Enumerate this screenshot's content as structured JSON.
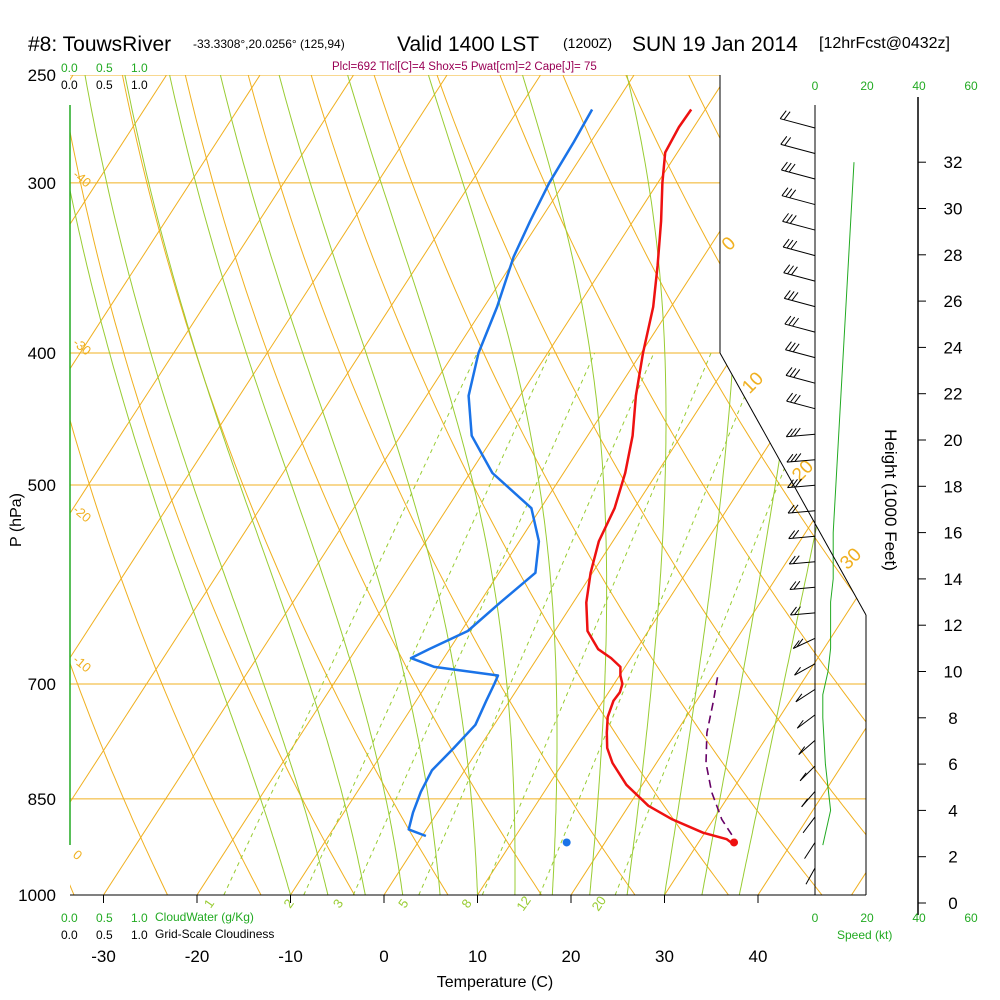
{
  "header": {
    "station": "#8: TouwsRiver",
    "coords": "-33.3308°,20.0256° (125,94)",
    "valid": "Valid 1400 LST",
    "valid_z": "(1200Z)",
    "date": "SUN 19 Jan 2014",
    "forecast": "[12hrFcst@0432z]",
    "indices": "Plcl=692 Tlcl[C]=4 Shox=5 Pwat[cm]=2 Cape[J]= 75"
  },
  "colors": {
    "temperature": "#ee1111",
    "dewpoint": "#1a73e8",
    "parcel": "#660066",
    "isotherm_isobar": "#f0b020",
    "dry_adiabat": "#f0b020",
    "moist_adiabat": "#99cc33",
    "mixing_ratio": "#99cc33",
    "speed_profile": "#22aa22",
    "cloud_scale": "#22aa22"
  },
  "chart_data": {
    "type": "line",
    "subtype": "skew-T log-p sounding",
    "xlabel": "Temperature (C)",
    "ylabel": "P (hPa)",
    "y2label": "Height (1000 Feet)",
    "xticks": [
      "-30",
      "-20",
      "-10",
      "0",
      "10",
      "20",
      "30",
      "40"
    ],
    "pressure_ticks": [
      "250",
      "300",
      "400",
      "500",
      "700",
      "850",
      "1000"
    ],
    "height_ticks": [
      "0",
      "2",
      "4",
      "6",
      "8",
      "10",
      "12",
      "14",
      "16",
      "18",
      "20",
      "22",
      "24",
      "26",
      "28",
      "30",
      "32"
    ],
    "ylim_hpa": [
      1000,
      250
    ],
    "log_pressure": true,
    "grid": true,
    "isotherm_labels": [
      "30",
      "20",
      "10",
      "0",
      "-10",
      "-20",
      "-30",
      "-40"
    ],
    "mixing_ratio_labels": [
      "1",
      "2",
      "3",
      "5",
      "8",
      "12",
      "20"
    ],
    "cloud_water_label": "CloudWater (g/Kg)",
    "cloudiness_label": "Grid-Scale Cloudiness",
    "cloud_scale_ticks": [
      "0.0",
      "0.5",
      "1.0"
    ],
    "speed_label": "Speed (kt)",
    "speed_ticks": [
      "0",
      "20",
      "40",
      "60"
    ],
    "temperature_series": {
      "name": "Temperature",
      "points_temp_c": [
        -21.5,
        -21.6,
        -21.3,
        -19.5,
        -17.0,
        -14.3,
        -11.9,
        -9.8,
        -7.6,
        -5.2,
        -3.4,
        -2.1,
        -1.5,
        -0.2,
        1.4,
        3.5,
        5.9,
        7.9,
        9.5,
        10.1,
        10.9,
        11.2,
        11.1,
        11.6,
        12.6,
        13.7,
        15.3,
        18.3,
        22.1,
        25.6,
        29.8,
        32.8,
        33.5
      ],
      "points_p_hpa": [
        265,
        273,
        285,
        300,
        320,
        345,
        370,
        400,
        430,
        460,
        490,
        520,
        550,
        580,
        610,
        640,
        660,
        670,
        680,
        690,
        700,
        710,
        720,
        740,
        760,
        780,
        800,
        830,
        860,
        880,
        900,
        910,
        915
      ]
    },
    "dewpoint_series": {
      "name": "Dewpoint",
      "points_temp_c": [
        -32.1,
        -31.8,
        -31.6,
        -31.0,
        -30.3,
        -28.6,
        -27.4,
        -25.5,
        -22.4,
        -17.6,
        -11.0,
        -7.9,
        -6.1,
        -7.8,
        -9.3,
        -12.2,
        -13.5,
        -10.4,
        -3.0,
        -2.8,
        -2.5,
        -2.0,
        -2.7,
        -3.5,
        -3.2,
        -2.6,
        -1.9,
        0.4
      ],
      "points_p_hpa": [
        265,
        280,
        300,
        320,
        340,
        370,
        400,
        430,
        460,
        490,
        520,
        550,
        580,
        610,
        640,
        660,
        670,
        680,
        690,
        700,
        720,
        750,
        780,
        810,
        840,
        870,
        895,
        905
      ]
    },
    "parcel_series": {
      "points_temp_c": [
        20.6,
        21.8,
        23.3,
        25.3,
        27.9,
        30.9,
        34.1
      ],
      "points_p_hpa": [
        692,
        720,
        760,
        800,
        840,
        880,
        915
      ]
    },
    "surface_temp_c": 33.8,
    "surface_dewpoint_c": 15.9,
    "surface_p_hpa": 915,
    "wind_speed_kt": [
      24,
      24,
      25,
      25,
      26,
      26,
      27,
      27,
      28,
      28,
      28,
      28,
      27,
      26,
      25,
      24,
      22,
      20,
      18,
      17,
      16,
      14,
      12,
      10,
      9,
      7,
      5,
      4,
      3,
      3
    ],
    "speed_profile_kt": [
      15,
      14,
      13,
      12,
      11,
      10,
      9,
      8,
      7,
      7,
      6,
      6,
      6,
      5,
      4,
      3,
      3,
      4,
      5,
      6,
      5,
      4,
      3
    ],
    "speed_profile_height_kft": [
      32,
      30,
      28,
      26,
      24,
      22,
      20,
      18,
      16,
      14,
      13,
      12,
      11,
      10,
      9.5,
      9,
      8,
      6,
      5,
      4,
      3.5,
      3,
      2.5
    ]
  }
}
